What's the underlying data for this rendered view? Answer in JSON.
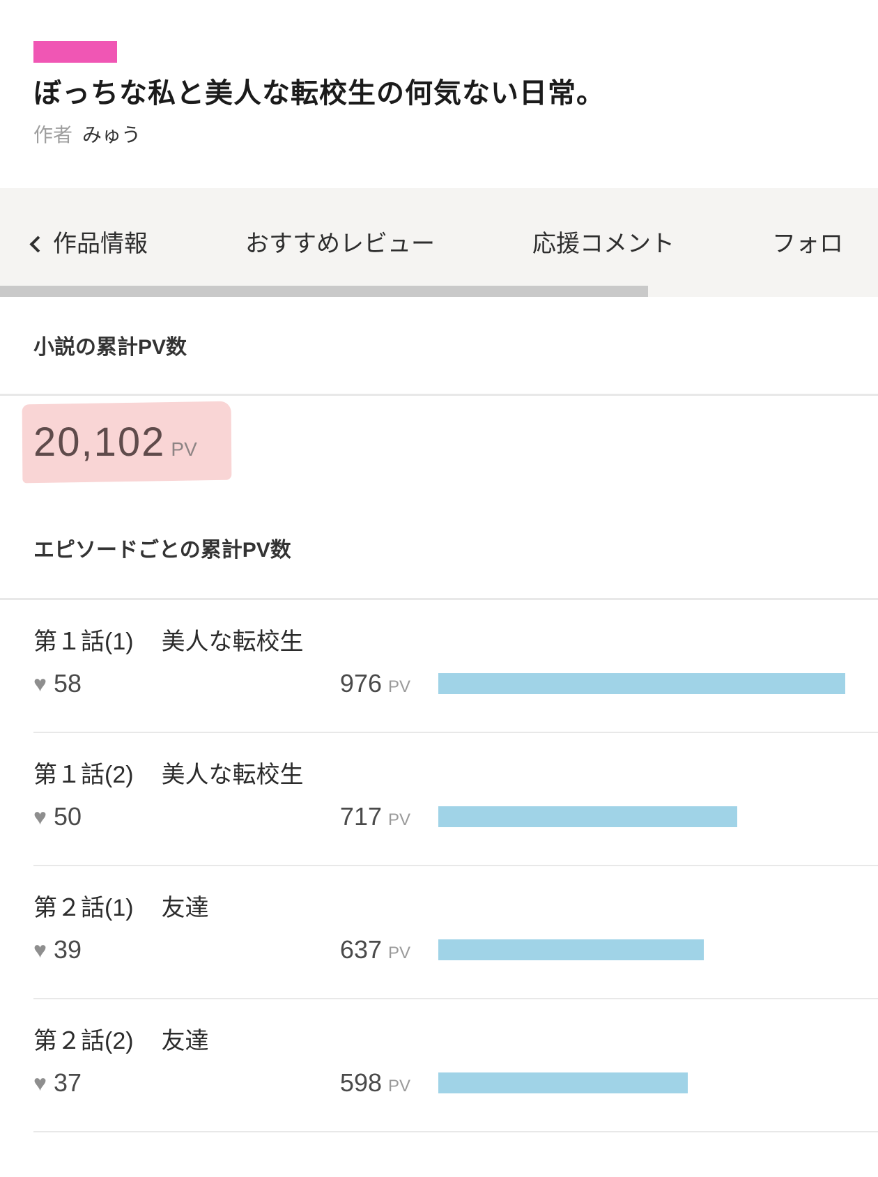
{
  "colors": {
    "accent_pink": "#f056b4",
    "highlight_pink": "#f9d5d5",
    "bar_blue": "#a0d3e7",
    "tabbar_bg": "#f5f4f2",
    "scrollbar_gray": "#c9c9c9"
  },
  "header": {
    "title": "ぼっちな私と美人な転校生の何気ない日常。",
    "author_label": "作者",
    "author_name": "みゅう"
  },
  "tabs": {
    "items": [
      {
        "label": "作品情報",
        "has_back_chevron": true
      },
      {
        "label": "おすすめレビュー",
        "has_back_chevron": false
      },
      {
        "label": "応援コメント",
        "has_back_chevron": false
      },
      {
        "label": "フォロ",
        "has_back_chevron": false
      }
    ]
  },
  "totals": {
    "section_title": "小説の累計PV数",
    "value": "20,102",
    "unit": "PV"
  },
  "episodes": {
    "section_title": "エピソードごとの累計PV数",
    "unit_label": "PV",
    "max_pv": 976,
    "items": [
      {
        "number": "第１話(1)",
        "subtitle": "美人な転校生",
        "likes": "58",
        "pv": "976"
      },
      {
        "number": "第１話(2)",
        "subtitle": "美人な転校生",
        "likes": "50",
        "pv": "717"
      },
      {
        "number": "第２話(1)",
        "subtitle": "友達",
        "likes": "39",
        "pv": "637"
      },
      {
        "number": "第２話(2)",
        "subtitle": "友達",
        "likes": "37",
        "pv": "598"
      }
    ]
  }
}
